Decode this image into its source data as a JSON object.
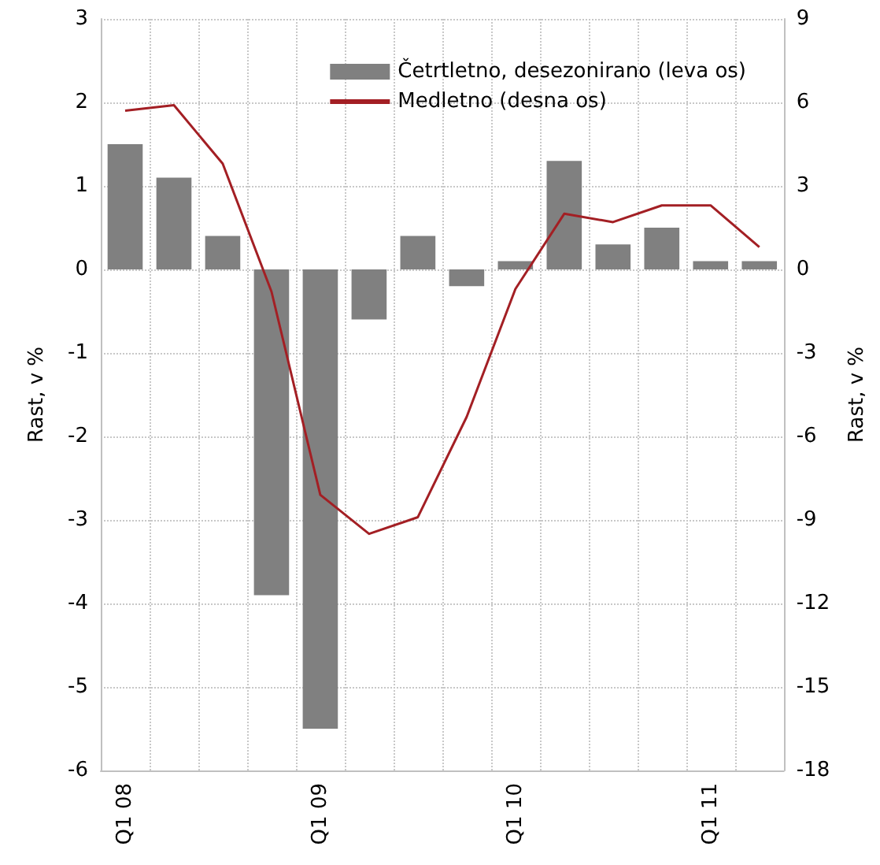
{
  "chart_data": {
    "type": "bar",
    "categories": [
      "Q1 08",
      null,
      null,
      null,
      "Q1 09",
      null,
      null,
      null,
      "Q1 10",
      null,
      null,
      null,
      "Q1 11",
      null
    ],
    "series": [
      {
        "name": "Četrtletno, desezonirano (leva os)",
        "color": "#808080",
        "values": [
          1.5,
          1.1,
          0.4,
          -3.9,
          -5.5,
          -0.6,
          0.4,
          -0.2,
          0.1,
          1.3,
          0.3,
          0.5,
          0.1,
          0.1
        ]
      },
      {
        "name": "Medletno (desna os)",
        "type": "line",
        "axis": "y2",
        "color": "#a31f24",
        "values": [
          5.7,
          5.9,
          3.8,
          -0.8,
          -8.1,
          -9.5,
          -8.9,
          -5.3,
          -0.7,
          2.0,
          1.7,
          2.3,
          2.3,
          0.8
        ]
      }
    ],
    "ylabel": "Rast, v %",
    "y2label": "Rast, v %",
    "ylim": [
      -6,
      3
    ],
    "yticks": [
      -6,
      -5,
      -4,
      -3,
      -2,
      -1,
      0,
      1,
      2,
      3
    ],
    "y2lim": [
      -18,
      9
    ],
    "y2ticks": [
      -18,
      -15,
      -12,
      -9,
      -6,
      -3,
      0,
      3,
      6,
      9
    ],
    "grid": true,
    "legend": "top right",
    "marker": "none",
    "line_style": "solid"
  }
}
